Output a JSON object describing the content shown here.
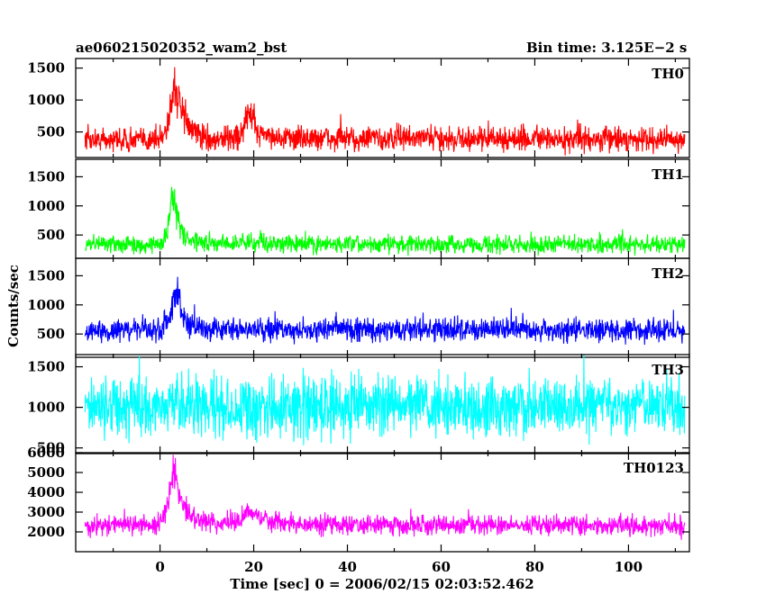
{
  "header": {
    "title": "ae060215020352_wam2_bst",
    "bin_time": "Bin time: 3.125E−2 s"
  },
  "axes": {
    "ylabel": "Counts/sec",
    "xlabel": "Time [sec] 0 = 2006/02/15 02:03:52.462"
  },
  "chart_data": {
    "type": "line",
    "title": "ae060215020352_wam2_bst",
    "xlabel": "Time [sec] 0 = 2006/02/15 02:03:52.462",
    "ylabel": "Counts/sec",
    "xlim": [
      -18,
      113
    ],
    "x_ticks": [
      0,
      20,
      40,
      60,
      80,
      100
    ],
    "x_range_of_data": [
      -16,
      112
    ],
    "bin_time_s": 0.03125,
    "grid": false,
    "panels": [
      {
        "name": "TH0",
        "color": "#ff0000",
        "ylim": [
          100,
          1650
        ],
        "yticks": [
          500,
          1000,
          1500
        ],
        "baseline": 380,
        "noise": 150,
        "envelope": [
          [
            -16,
            380
          ],
          [
            0,
            380
          ],
          [
            1.5,
            600
          ],
          [
            3,
            1250
          ],
          [
            4,
            950
          ],
          [
            6,
            600
          ],
          [
            9,
            420
          ],
          [
            12,
            380
          ],
          [
            17,
            450
          ],
          [
            19,
            800
          ],
          [
            21,
            500
          ],
          [
            26,
            400
          ],
          [
            112,
            380
          ]
        ]
      },
      {
        "name": "TH1",
        "color": "#00ff00",
        "ylim": [
          100,
          1800
        ],
        "yticks": [
          500,
          1000,
          1500
        ],
        "baseline": 340,
        "noise": 120,
        "envelope": [
          [
            -16,
            340
          ],
          [
            0,
            340
          ],
          [
            1.5,
            500
          ],
          [
            2.5,
            1300
          ],
          [
            4,
            700
          ],
          [
            6,
            400
          ],
          [
            10,
            340
          ],
          [
            20,
            380
          ],
          [
            28,
            340
          ],
          [
            112,
            340
          ]
        ]
      },
      {
        "name": "TH2",
        "color": "#0000ff",
        "ylim": [
          100,
          1800
        ],
        "yticks": [
          500,
          1000,
          1500
        ],
        "baseline": 560,
        "noise": 160,
        "envelope": [
          [
            -16,
            560
          ],
          [
            0,
            580
          ],
          [
            2,
            800
          ],
          [
            3.5,
            1300
          ],
          [
            5,
            700
          ],
          [
            8,
            580
          ],
          [
            112,
            560
          ]
        ]
      },
      {
        "name": "TH3",
        "color": "#00ffff",
        "ylim": [
          430,
          1650
        ],
        "yticks": [
          500,
          1000,
          1500
        ],
        "baseline": 1010,
        "noise": 300,
        "envelope": [
          [
            -16,
            1010
          ],
          [
            112,
            1010
          ]
        ]
      },
      {
        "name": "TH0123",
        "color": "#ff00ff",
        "ylim": [
          1000,
          6000
        ],
        "yticks": [
          2000,
          3000,
          4000,
          5000,
          6000
        ],
        "baseline": 2300,
        "noise": 400,
        "envelope": [
          [
            -16,
            2300
          ],
          [
            0,
            2400
          ],
          [
            1.5,
            3200
          ],
          [
            3,
            5300
          ],
          [
            4.5,
            3500
          ],
          [
            7,
            2700
          ],
          [
            12,
            2400
          ],
          [
            17,
            2600
          ],
          [
            19,
            3100
          ],
          [
            22,
            2600
          ],
          [
            28,
            2400
          ],
          [
            112,
            2300
          ]
        ]
      }
    ]
  }
}
